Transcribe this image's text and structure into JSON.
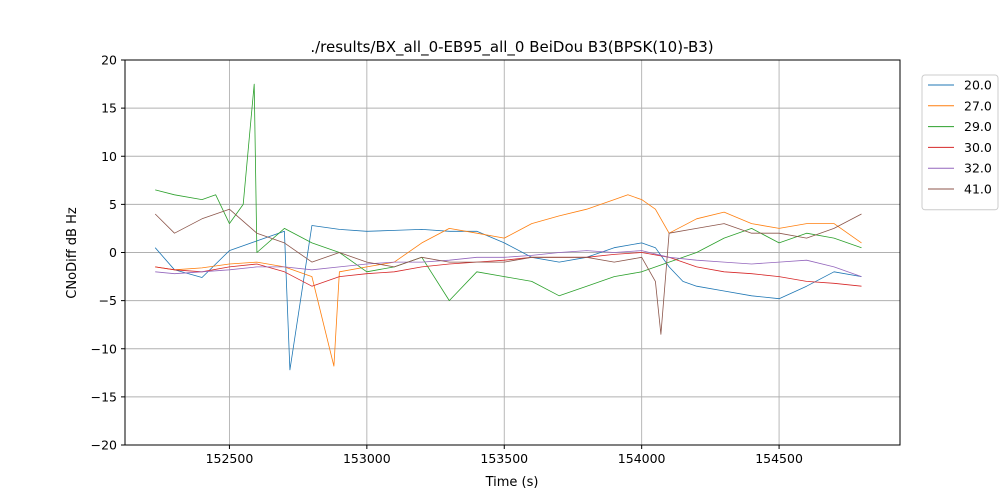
{
  "chart_data": {
    "type": "line",
    "title": "./results/BX_all_0-EB95_all_0 BeiDou B3(BPSK(10)-B3)",
    "xlabel": "Time (s)",
    "ylabel": "CNoDiff dB Hz",
    "xlim": [
      152120,
      154940
    ],
    "ylim": [
      -20,
      20
    ],
    "xticks": [
      152500,
      153000,
      153500,
      154000,
      154500
    ],
    "xtick_labels": [
      "152500",
      "153000",
      "153500",
      "154000",
      "154500"
    ],
    "yticks": [
      -20,
      -15,
      -10,
      -5,
      0,
      5,
      10,
      15,
      20
    ],
    "ytick_labels": [
      "−20",
      "−15",
      "−10",
      "−5",
      "0",
      "5",
      "10",
      "15",
      "20"
    ],
    "grid": true,
    "legend_position": "outside-top-right",
    "series": [
      {
        "name": "20.0",
        "color": "#1f77b4",
        "x": [
          152230,
          152300,
          152400,
          152500,
          152600,
          152700,
          152720,
          152800,
          152900,
          153000,
          153100,
          153200,
          153300,
          153400,
          153500,
          153600,
          153700,
          153800,
          153900,
          154000,
          154050,
          154100,
          154150,
          154200,
          154300,
          154400,
          154500,
          154600,
          154700,
          154800
        ],
        "values": [
          0.5,
          -1.8,
          -2.6,
          0.2,
          1.2,
          2.2,
          -12.2,
          2.8,
          2.4,
          2.2,
          2.3,
          2.4,
          2.2,
          2.2,
          1.0,
          -0.5,
          -1.0,
          -0.5,
          0.5,
          1.0,
          0.5,
          -1.5,
          -3.0,
          -3.5,
          -4.0,
          -4.5,
          -4.8,
          -3.5,
          -2.0,
          -2.5
        ]
      },
      {
        "name": "27.0",
        "color": "#ff7f0e",
        "x": [
          152230,
          152300,
          152400,
          152500,
          152600,
          152700,
          152800,
          152880,
          152900,
          153000,
          153100,
          153200,
          153300,
          153400,
          153500,
          153600,
          153700,
          153800,
          153900,
          153950,
          154000,
          154050,
          154100,
          154200,
          154300,
          154400,
          154500,
          154600,
          154700,
          154800
        ],
        "values": [
          -1.5,
          -1.8,
          -1.6,
          -1.2,
          -1.0,
          -1.5,
          -2.5,
          -11.8,
          -2.0,
          -1.5,
          -1.0,
          1.0,
          2.5,
          2.0,
          1.5,
          3.0,
          3.8,
          4.5,
          5.5,
          6.0,
          5.5,
          4.5,
          2.0,
          3.5,
          4.2,
          3.0,
          2.5,
          3.0,
          3.0,
          1.0
        ]
      },
      {
        "name": "29.0",
        "color": "#2ca02c",
        "x": [
          152230,
          152300,
          152400,
          152450,
          152500,
          152550,
          152590,
          152600,
          152700,
          152800,
          152900,
          153000,
          153100,
          153200,
          153300,
          153400,
          153500,
          153600,
          153700,
          153800,
          153900,
          154000,
          154100,
          154200,
          154300,
          154400,
          154500,
          154600,
          154700,
          154800
        ],
        "values": [
          6.5,
          6.0,
          5.5,
          6.0,
          3.0,
          5.0,
          17.5,
          0.0,
          2.5,
          1.0,
          0.0,
          -2.0,
          -1.5,
          -0.5,
          -5.0,
          -2.0,
          -2.5,
          -3.0,
          -4.5,
          -3.5,
          -2.5,
          -2.0,
          -1.0,
          0.0,
          1.5,
          2.5,
          1.0,
          2.0,
          1.5,
          0.5
        ]
      },
      {
        "name": "30.0",
        "color": "#d62728",
        "x": [
          152230,
          152300,
          152400,
          152500,
          152600,
          152700,
          152800,
          152900,
          153000,
          153100,
          153200,
          153300,
          153400,
          153500,
          153600,
          153700,
          153800,
          153900,
          154000,
          154100,
          154200,
          154300,
          154400,
          154500,
          154600,
          154700,
          154800
        ],
        "values": [
          -1.5,
          -1.8,
          -2.0,
          -1.5,
          -1.2,
          -2.0,
          -3.5,
          -2.5,
          -2.2,
          -2.0,
          -1.5,
          -1.2,
          -1.0,
          -0.8,
          -0.5,
          -0.5,
          -0.5,
          -0.2,
          0.0,
          -0.5,
          -1.5,
          -2.0,
          -2.2,
          -2.5,
          -3.0,
          -3.2,
          -3.5
        ]
      },
      {
        "name": "32.0",
        "color": "#9467bd",
        "x": [
          152230,
          152300,
          152400,
          152500,
          152600,
          152700,
          152800,
          152900,
          153000,
          153100,
          153200,
          153300,
          153400,
          153500,
          153600,
          153700,
          153800,
          153900,
          154000,
          154100,
          154200,
          154300,
          154400,
          154500,
          154600,
          154700,
          154800
        ],
        "values": [
          -2.0,
          -2.2,
          -2.0,
          -1.8,
          -1.5,
          -1.5,
          -1.8,
          -1.5,
          -1.2,
          -1.0,
          -1.0,
          -0.8,
          -0.5,
          -0.5,
          -0.3,
          0.0,
          0.2,
          0.0,
          0.2,
          -0.5,
          -0.8,
          -1.0,
          -1.2,
          -1.0,
          -0.8,
          -1.5,
          -2.5
        ]
      },
      {
        "name": "41.0",
        "color": "#8c564b",
        "x": [
          152230,
          152300,
          152400,
          152500,
          152600,
          152700,
          152800,
          152900,
          153000,
          153100,
          153200,
          153300,
          153400,
          153500,
          153600,
          153700,
          153800,
          153900,
          154000,
          154050,
          154070,
          154100,
          154200,
          154300,
          154400,
          154500,
          154600,
          154700,
          154800
        ],
        "values": [
          4.0,
          2.0,
          3.5,
          4.5,
          2.0,
          1.0,
          -1.0,
          0.0,
          -1.0,
          -1.5,
          -0.5,
          -1.0,
          -1.0,
          -1.0,
          -0.5,
          -0.5,
          -0.5,
          -1.0,
          -0.5,
          -3.0,
          -8.5,
          2.0,
          2.5,
          3.0,
          2.0,
          2.0,
          1.5,
          2.5,
          4.0
        ]
      }
    ]
  }
}
